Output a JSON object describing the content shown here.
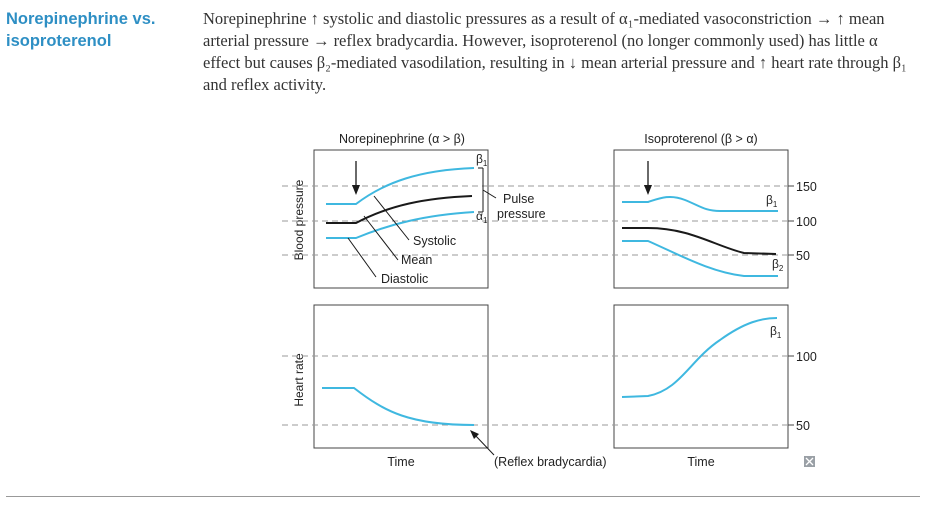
{
  "section": {
    "heading": "Norepinephrine vs. isoproterenol",
    "paragraph": "Norepinephrine ↑ systolic and diastolic pressures as a result of α₁-mediated vasoconstriction → ↑ mean arterial pressure → reflex bradycardia. However, isoproterenol (no longer commonly used) has little α effect but causes β₂-mediated vasodilation, resulting in ↓ mean arterial pressure and ↑ heart rate through β₁ and reflex activity."
  },
  "figure": {
    "left_title": "Norepinephrine (α > β)",
    "right_title": "Isoproterenol (β > α)",
    "y_label_top": "Blood pressure",
    "y_label_bottom": "Heart rate",
    "x_label_left": "Time",
    "x_label_right": "Time",
    "bp_ticks": [
      "150",
      "100",
      "50"
    ],
    "hr_ticks": [
      "100",
      "50"
    ],
    "annotations": {
      "pulse_pressure": "Pulse\npressure",
      "systolic": "Systolic",
      "mean": "Mean",
      "diastolic": "Diastolic",
      "beta1": "β1",
      "alpha1": "α1",
      "beta2": "β2",
      "reflex": "(Reflex bradycardia)"
    },
    "colors": {
      "blue": "#3fb8e0",
      "black": "#1a1a1a",
      "dash": "#9a9a9a",
      "frame": "#444444"
    }
  }
}
